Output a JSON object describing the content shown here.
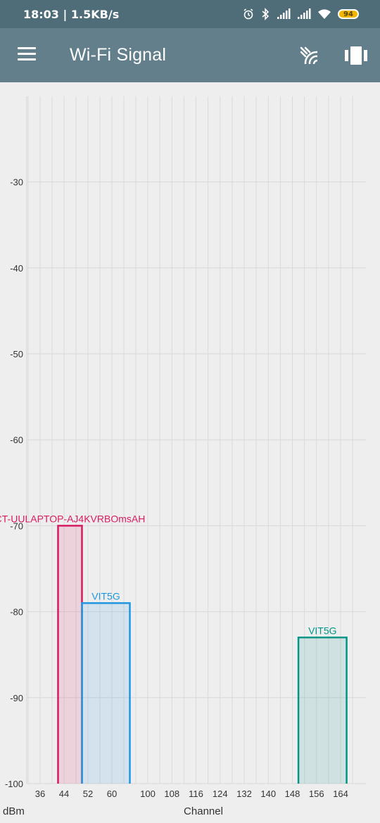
{
  "status_bar": {
    "time_speed": "18:03 | 1.5KB/s",
    "battery": "94",
    "icons": [
      "alarm-icon",
      "bluetooth-icon",
      "signal-icon",
      "signal-icon",
      "wifi-icon",
      "battery-icon"
    ]
  },
  "app_bar": {
    "title": "Wi-Fi Signal",
    "icons": [
      "menu-icon",
      "scan-icon",
      "view-toggle-icon"
    ]
  },
  "chart_data": {
    "type": "bar",
    "xlabel": "Channel",
    "ylabel": "dBm",
    "x_ticks": [
      36,
      44,
      52,
      60,
      100,
      108,
      116,
      124,
      132,
      140,
      148,
      156,
      164
    ],
    "y_ticks": [
      -30,
      -40,
      -50,
      -60,
      -70,
      -80,
      -90,
      -100
    ],
    "ylim": [
      -100,
      -20
    ],
    "grid": true,
    "series": [
      {
        "name": "CT-UULAPTOP-AJ4KVRBOmsAH",
        "channel_start": 42,
        "channel_end": 50,
        "signal": -70,
        "color": "#d81b60"
      },
      {
        "name": "VIT5G",
        "channel_start": 50,
        "channel_end": 66,
        "signal": -79,
        "color": "#2196e0"
      },
      {
        "name": "VIT5G",
        "channel_start": 150,
        "channel_end": 166,
        "signal": -83,
        "color": "#009688"
      }
    ]
  }
}
